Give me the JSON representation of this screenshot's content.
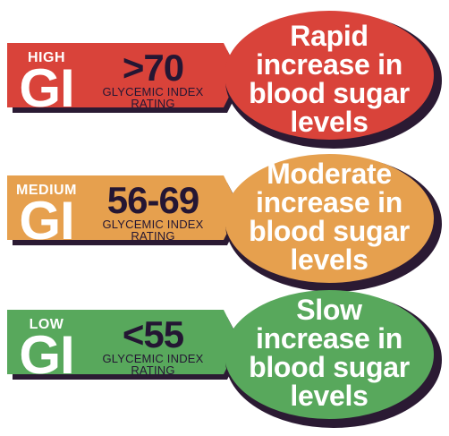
{
  "colors": {
    "high": "#d9433a",
    "medium": "#e6a04e",
    "low": "#58a85c",
    "shadow": "#2b1a33",
    "text_dark": "#241633",
    "text_light": "#ffffff"
  },
  "tiers": [
    {
      "key": "high",
      "level": "HIGH",
      "gi": "GI",
      "range": ">70",
      "rating_line1": "GLYCEMIC INDEX",
      "rating_line2": "RATING",
      "result_lines": [
        "Rapid",
        "increase in",
        "blood sugar",
        "levels"
      ]
    },
    {
      "key": "medium",
      "level": "MEDIUM",
      "gi": "GI",
      "range": "56-69",
      "rating_line1": "GLYCEMIC INDEX",
      "rating_line2": "RATING",
      "result_lines": [
        "Moderate",
        "increase in",
        "blood sugar",
        "levels"
      ]
    },
    {
      "key": "low",
      "level": "LOW",
      "gi": "GI",
      "range": "<55",
      "rating_line1": "GLYCEMIC INDEX",
      "rating_line2": "RATING",
      "result_lines": [
        "Slow",
        "increase in",
        "blood sugar",
        "levels"
      ]
    }
  ]
}
